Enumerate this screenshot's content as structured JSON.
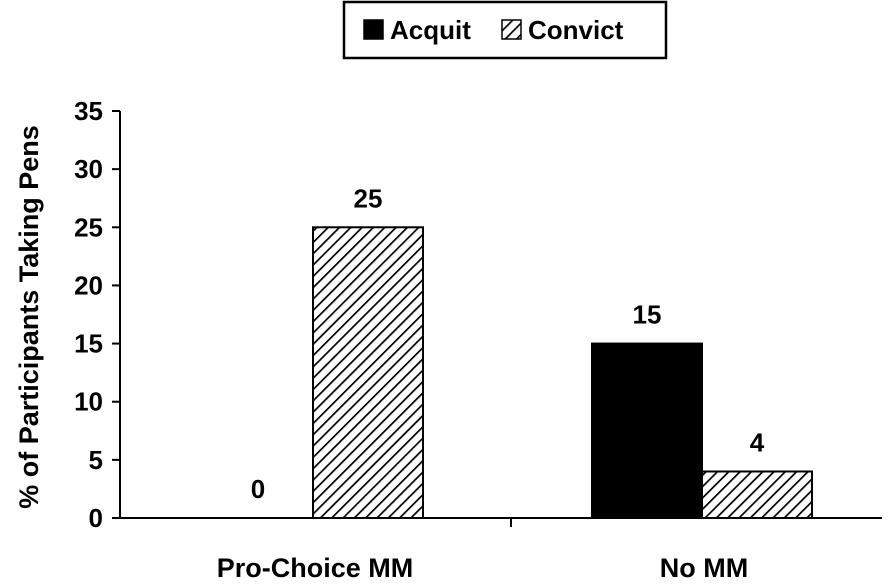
{
  "chart_data": {
    "type": "bar",
    "title": "",
    "xlabel": "",
    "ylabel": "% of Participants Taking Pens",
    "categories": [
      "Pro-Choice MM",
      "No MM"
    ],
    "series": [
      {
        "name": "Acquit",
        "values": [
          0,
          15
        ],
        "data_labels": [
          "0",
          "15"
        ]
      },
      {
        "name": "Convict",
        "values": [
          25,
          4
        ],
        "data_labels": [
          "25",
          "4"
        ]
      }
    ],
    "ylim": [
      0,
      35
    ],
    "yticks": [
      0,
      5,
      10,
      15,
      20,
      25,
      30,
      35
    ],
    "grid": false,
    "legend_position": "top-center",
    "colors": {
      "Acquit": "#000000",
      "Convict": "#ffffff",
      "hatch": "#000000"
    }
  }
}
